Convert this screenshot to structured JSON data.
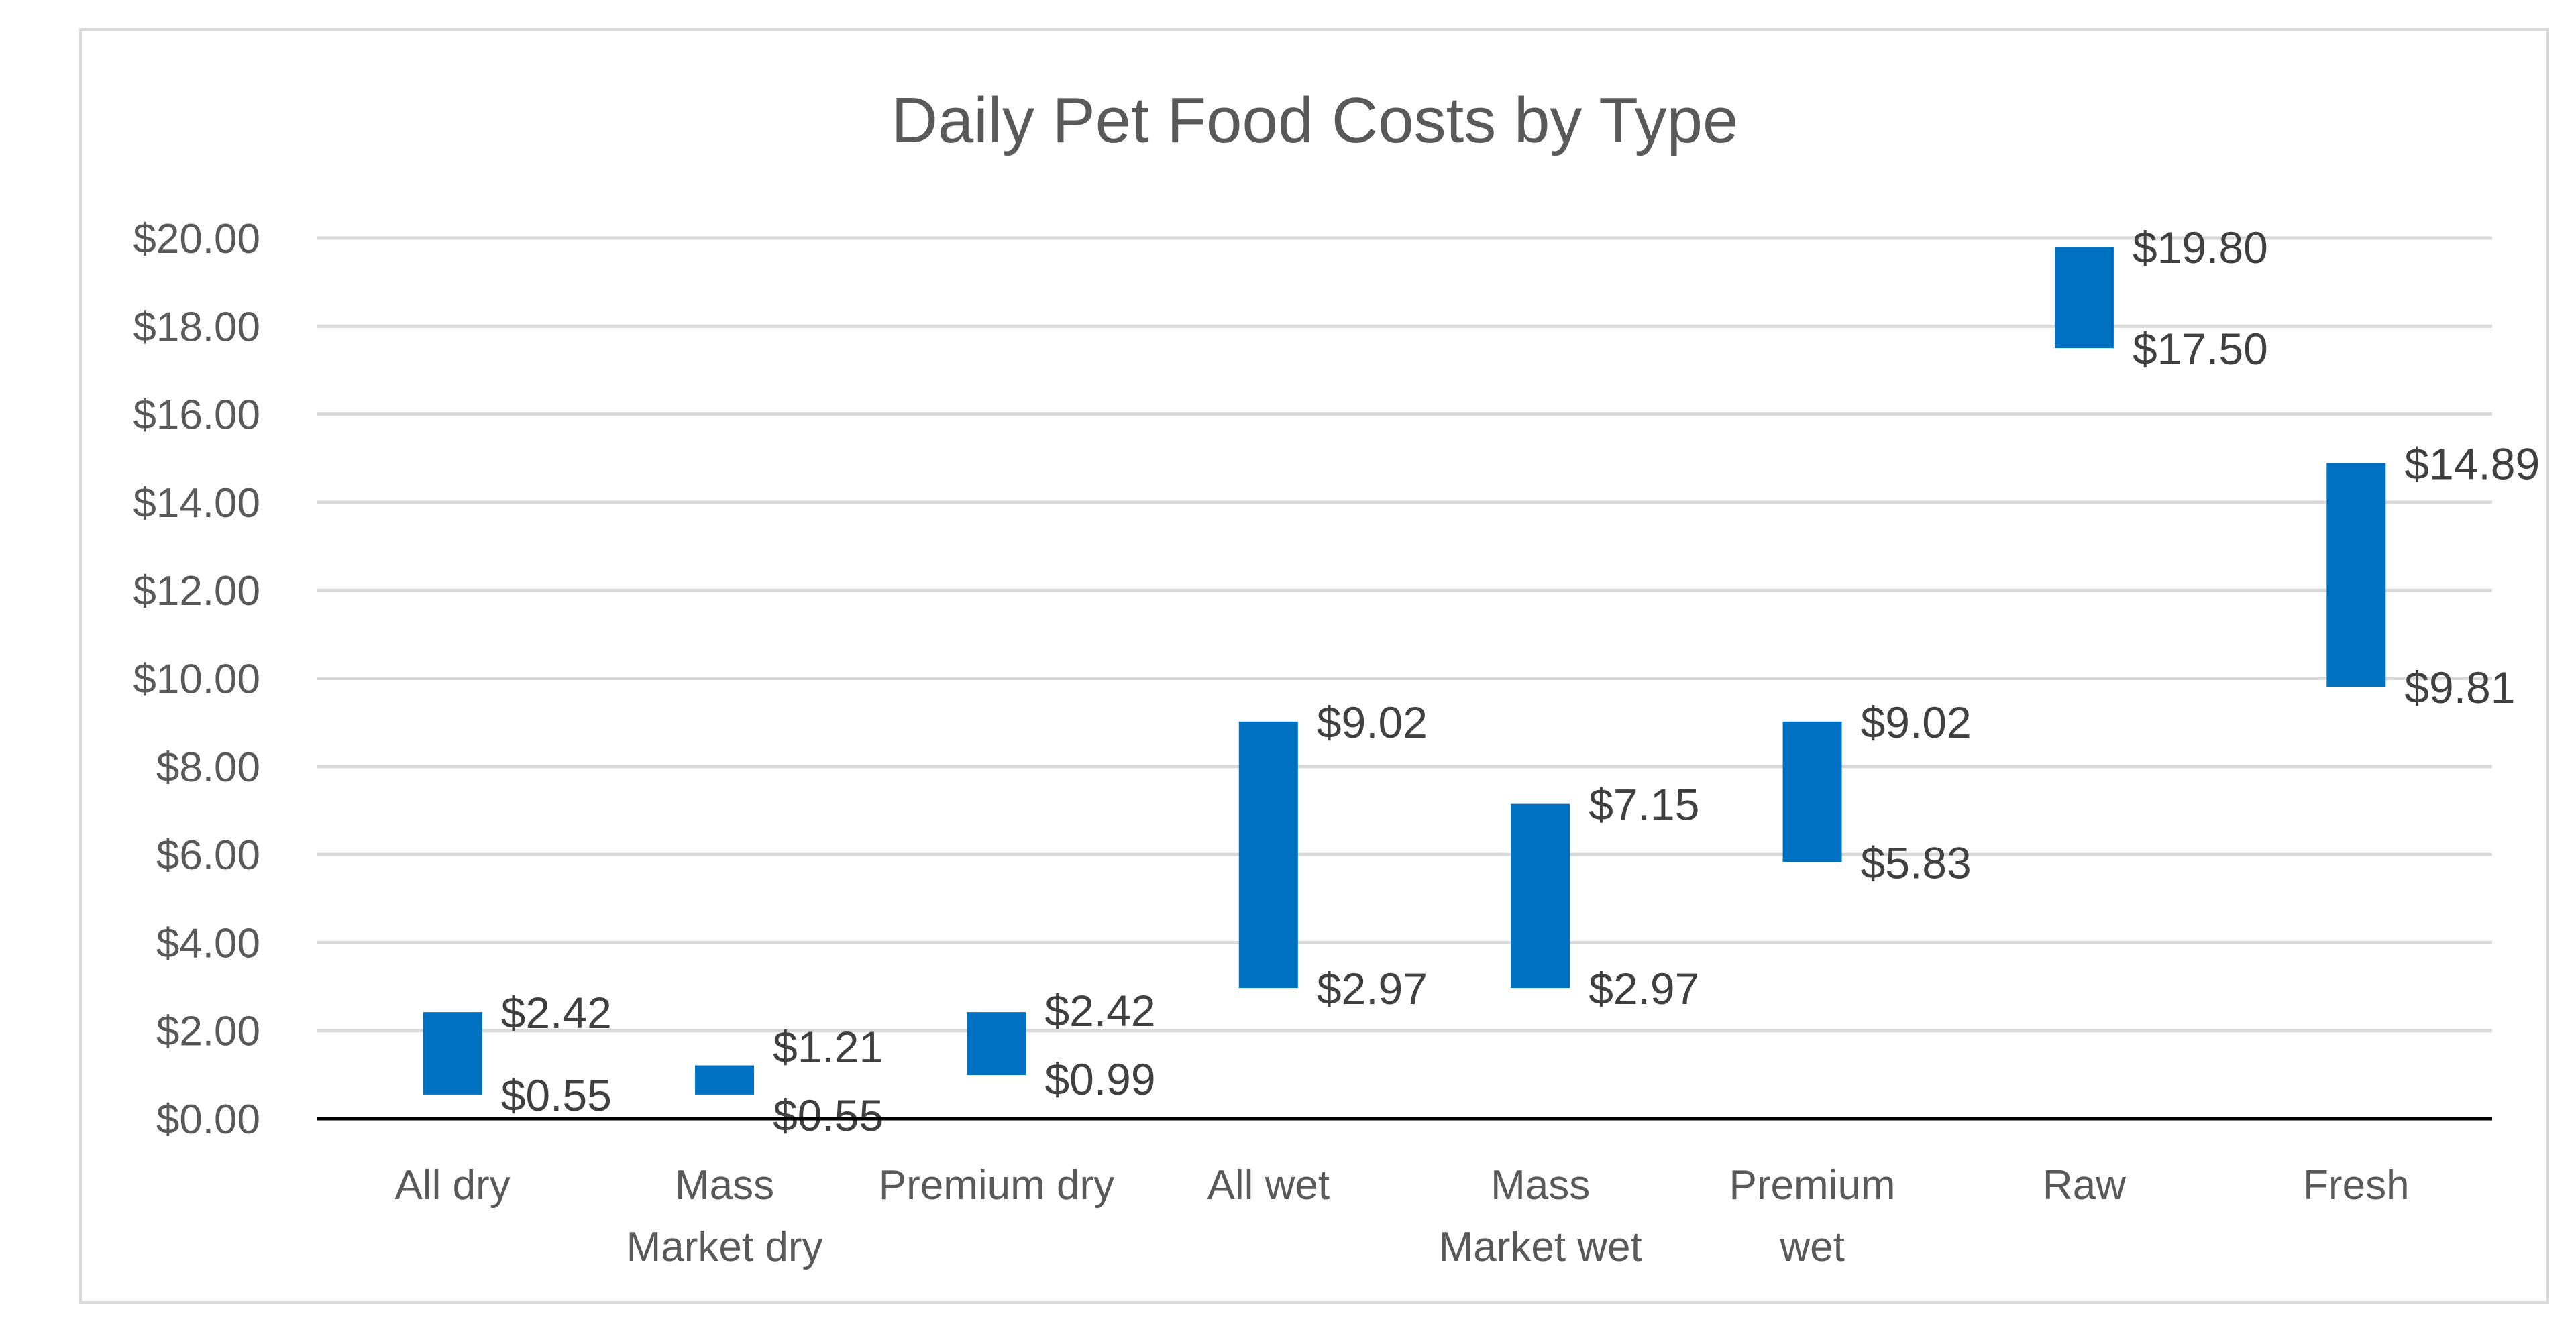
{
  "chart_data": {
    "type": "bar",
    "subtype": "floating-range",
    "title": "Daily Pet Food Costs by Type",
    "xlabel": "",
    "ylabel": "",
    "ylim": [
      0,
      20
    ],
    "y_tick_step": 2,
    "y_ticks": [
      "$0.00",
      "$2.00",
      "$4.00",
      "$6.00",
      "$8.00",
      "$10.00",
      "$12.00",
      "$14.00",
      "$16.00",
      "$18.00",
      "$20.00"
    ],
    "categories": [
      [
        "All dry"
      ],
      [
        "Mass",
        "Market dry"
      ],
      [
        "Premium dry"
      ],
      [
        "All wet"
      ],
      [
        "Mass",
        "Market wet"
      ],
      [
        "Premium",
        "wet"
      ],
      [
        "Raw"
      ],
      [
        "Fresh"
      ]
    ],
    "series": [
      {
        "low": [
          0.55,
          0.55,
          0.99,
          2.97,
          2.97,
          5.83,
          17.5,
          9.81
        ],
        "high": [
          2.42,
          1.21,
          2.42,
          9.02,
          7.15,
          9.02,
          19.8,
          14.89
        ],
        "low_labels": [
          "$0.55",
          "$0.55",
          "$0.99",
          "$2.97",
          "$2.97",
          "$5.83",
          "$17.50",
          "$9.81"
        ],
        "high_labels": [
          "$2.42",
          "$1.21",
          "$2.42",
          "$9.02",
          "$7.15",
          "$9.02",
          "$19.80",
          "$14.89"
        ]
      }
    ],
    "grid": true,
    "legend": "none",
    "bar_color": "#0070C0"
  }
}
